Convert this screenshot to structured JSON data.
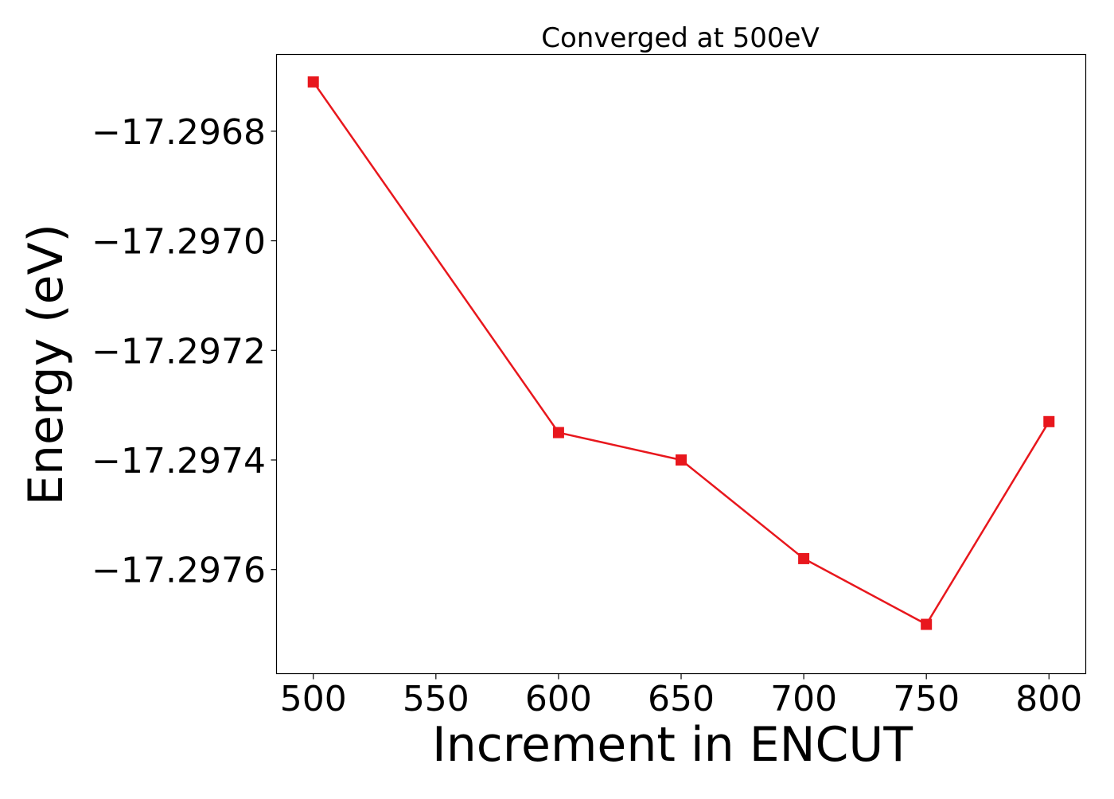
{
  "chart_data": {
    "type": "line",
    "title": "Converged at 500eV",
    "xlabel": "Increment in ENCUT",
    "ylabel": "Energy (eV)",
    "x": [
      500,
      600,
      650,
      700,
      750,
      800
    ],
    "series": [
      {
        "values": [
          -17.29671,
          -17.29735,
          -17.2974,
          -17.29758,
          -17.2977,
          -17.29733
        ],
        "color": "#e8171d",
        "marker": "square"
      }
    ],
    "xticks": [
      500,
      550,
      600,
      650,
      700,
      750,
      800
    ],
    "xtick_labels": [
      "500",
      "550",
      "600",
      "650",
      "700",
      "750",
      "800"
    ],
    "yticks": [
      -17.2968,
      -17.297,
      -17.2972,
      -17.2974,
      -17.2976
    ],
    "ytick_labels": [
      "−17.2968",
      "−17.2970",
      "−17.2972",
      "−17.2974",
      "−17.2976"
    ],
    "xlim": [
      485,
      815
    ],
    "ylim": [
      -17.29779,
      -17.29666
    ],
    "grid": false,
    "legend": false
  }
}
